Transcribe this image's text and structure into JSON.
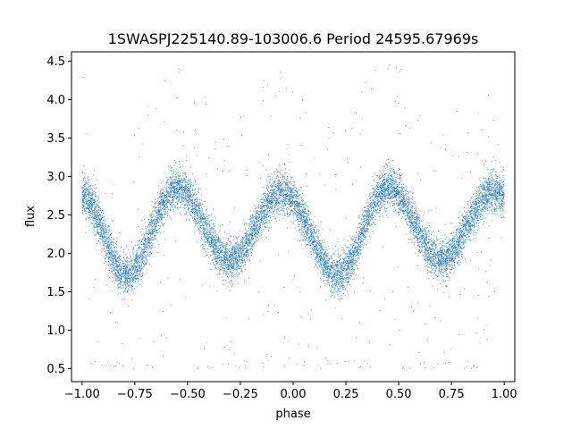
{
  "chart_data": {
    "type": "scatter",
    "title": "1SWASPJ225140.89-103006.6 Period 24595.67969s",
    "xlabel": "phase",
    "ylabel": "flux",
    "xlim": [
      -1.05,
      1.05
    ],
    "ylim": [
      0.33,
      4.62
    ],
    "xticks": [
      -1.0,
      -0.75,
      -0.5,
      -0.25,
      0.0,
      0.25,
      0.5,
      0.75,
      1.0
    ],
    "xtick_labels": [
      "−1.00",
      "−0.75",
      "−0.50",
      "−0.25",
      "0.00",
      "0.25",
      "0.50",
      "0.75",
      "1.00"
    ],
    "yticks": [
      0.5,
      1.0,
      1.5,
      2.0,
      2.5,
      3.0,
      3.5,
      4.0,
      4.5
    ],
    "ytick_labels": [
      "0.5",
      "1.0",
      "1.5",
      "2.0",
      "2.5",
      "3.0",
      "3.5",
      "4.0",
      "4.5"
    ],
    "grid": false,
    "point_color": "#1f77b4",
    "series": [
      {
        "x_range": [
          -1.0,
          1.0
        ],
        "approx_points": 12000,
        "minima": [
          {
            "phase": -0.79,
            "flux": 1.72
          },
          {
            "phase": -0.3,
            "flux": 1.92
          },
          {
            "phase": 0.21,
            "flux": 1.72
          },
          {
            "phase": 0.7,
            "flux": 1.92
          }
        ],
        "maxima": [
          {
            "phase": -1.0,
            "flux": 2.75
          },
          {
            "phase": -0.55,
            "flux": 2.85
          },
          {
            "phase": -0.05,
            "flux": 2.8
          },
          {
            "phase": 0.45,
            "flux": 2.85
          },
          {
            "phase": 0.95,
            "flux": 2.8
          }
        ],
        "scatter_sigma": 0.13
      }
    ]
  }
}
